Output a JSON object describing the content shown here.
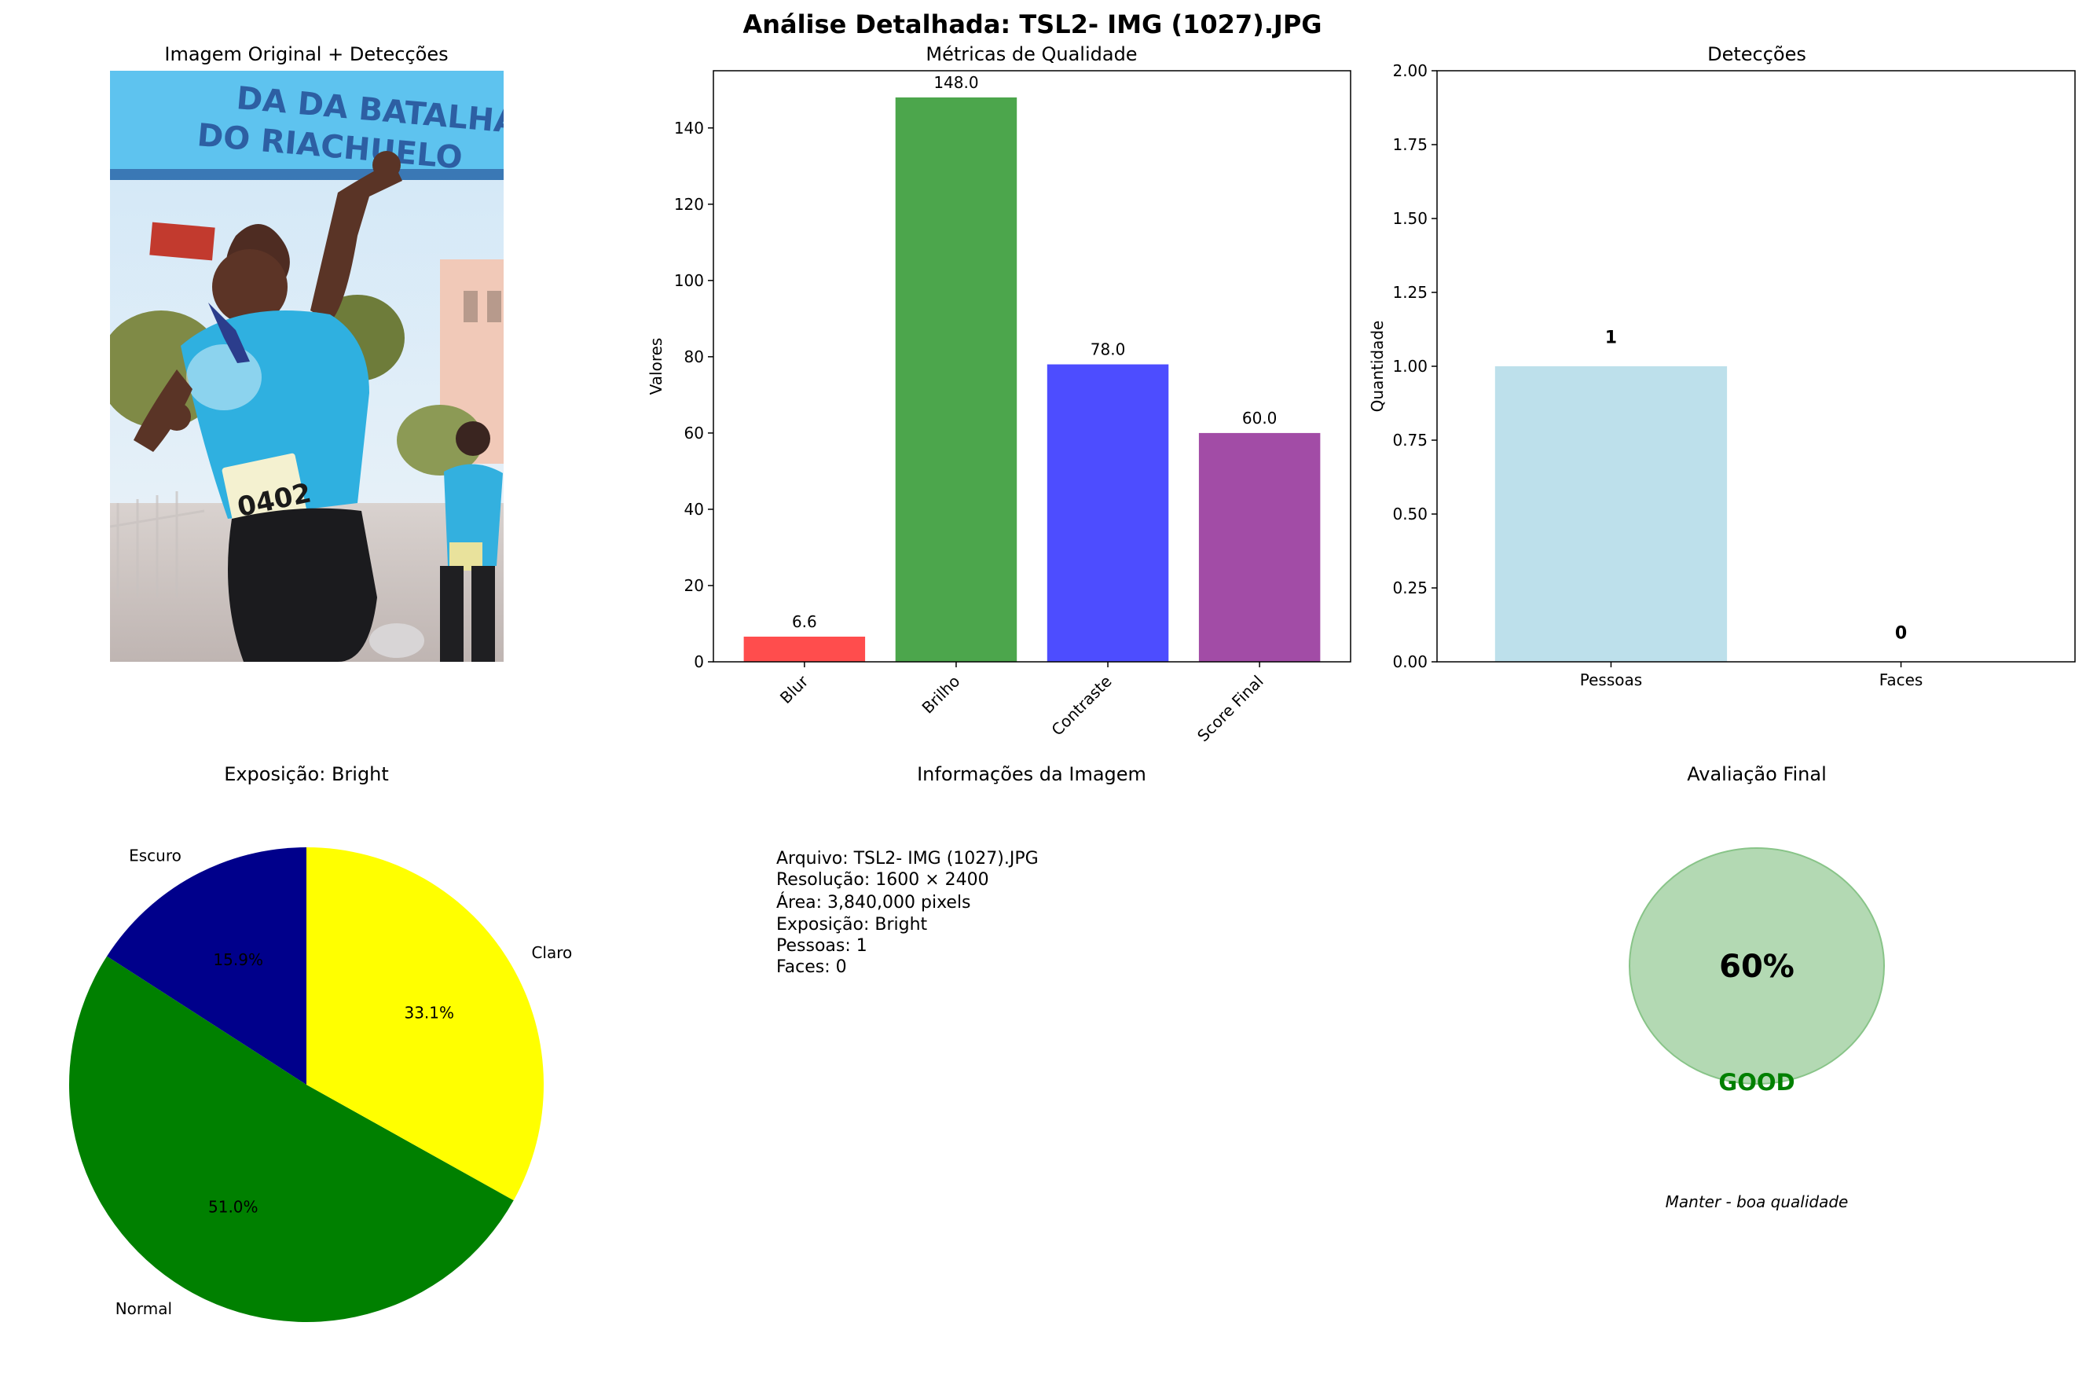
{
  "figure": {
    "title": "Análise Detalhada: TSL2- IMG  (1027).JPG"
  },
  "photo": {
    "title": "Imagem Original + Detecções",
    "banner_line1": "DA DA BATALHA",
    "banner_line2": "DO RIACHUELO",
    "bib_number": "0402"
  },
  "quality": {
    "title": "Métricas de Qualidade",
    "ylabel": "Valores"
  },
  "detections": {
    "title": "Detecções",
    "ylabel": "Quantidade"
  },
  "exposure": {
    "title": "Exposição: Bright"
  },
  "info": {
    "title": "Informações da Imagem",
    "lines": [
      "Arquivo: TSL2- IMG  (1027).JPG",
      "Resolução: 1600 × 2400",
      "Área: 3,840,000 pixels",
      "Exposição: Bright",
      "Pessoas: 1",
      "Faces: 0"
    ]
  },
  "final": {
    "title": "Avaliação Final",
    "score_text": "60%",
    "grade": "GOOD",
    "recommendation": "Manter - boa qualidade",
    "score_fraction": 0.6,
    "circle_color": "#b3d9b3",
    "grade_color": "#008000"
  },
  "chart_data": [
    {
      "id": "quality",
      "type": "bar",
      "title": "Métricas de Qualidade",
      "xlabel": "",
      "ylabel": "Valores",
      "categories": [
        "Blur",
        "Brilho",
        "Contraste",
        "Score Final"
      ],
      "values": [
        6.6,
        148.0,
        78.0,
        60.0
      ],
      "value_labels": [
        "6.6",
        "148.0",
        "78.0",
        "60.0"
      ],
      "colors": [
        "#ff4d4d",
        "#4ca64c",
        "#4d4dff",
        "#a24ca6"
      ],
      "ylim": [
        0,
        155
      ],
      "yticks": [
        0,
        20,
        40,
        60,
        80,
        100,
        120,
        140
      ],
      "xtick_rotation": 45,
      "grid": false
    },
    {
      "id": "detections",
      "type": "bar",
      "title": "Detecções",
      "xlabel": "",
      "ylabel": "Quantidade",
      "categories": [
        "Pessoas",
        "Faces"
      ],
      "values": [
        1,
        0
      ],
      "value_labels": [
        "1",
        "0"
      ],
      "colors": [
        "#add8e6",
        "#ffb6c1"
      ],
      "ylim": [
        0,
        2
      ],
      "yticks": [
        "0.00",
        "0.25",
        "0.50",
        "0.75",
        "1.00",
        "1.25",
        "1.50",
        "1.75",
        "2.00"
      ],
      "grid": false
    },
    {
      "id": "exposure",
      "type": "pie",
      "title": "Exposição: Bright",
      "labels": [
        "Escuro",
        "Normal",
        "Claro"
      ],
      "values": [
        15.9,
        51.0,
        33.1
      ],
      "pct_labels": [
        "15.9%",
        "51.0%",
        "33.1%"
      ],
      "colors": [
        "#00008b",
        "#008000",
        "#ffff00"
      ],
      "start_angle": 90,
      "counterclockwise": true
    }
  ]
}
